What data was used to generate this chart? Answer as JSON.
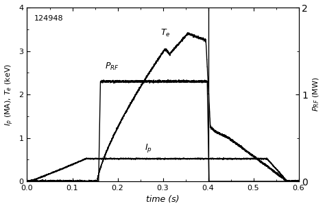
{
  "annotation_shot": "124948",
  "xlabel": "time (s)",
  "ylabel_left": "$I_p$ (MA), $T_e$ (keV)",
  "ylabel_right": "$P_{RF}$ (MW)",
  "xlim": [
    0.0,
    0.6
  ],
  "ylim_left": [
    0.0,
    4.0
  ],
  "ylim_right": [
    0.0,
    2.0
  ],
  "xticks": [
    0.0,
    0.1,
    0.2,
    0.3,
    0.4,
    0.5,
    0.6
  ],
  "yticks_left": [
    0,
    1,
    2,
    3,
    4
  ],
  "yticks_right": [
    0,
    1,
    2
  ],
  "bg_color": "#ffffff",
  "line_color": "#000000",
  "vertical_line_x": 0.4,
  "lw": 1.0
}
